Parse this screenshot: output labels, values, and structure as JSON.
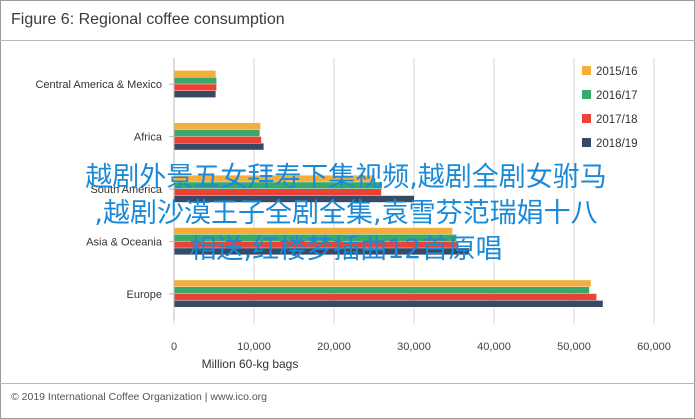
{
  "header": {
    "title": "Figure 6: Regional coffee consumption"
  },
  "footer": {
    "text": "© 2019 International Coffee Organization",
    "link": "www.ico.org"
  },
  "overlay_text": [
    "越剧外景五女拜寿下集视频,越剧全剧女驸马",
    ",越剧沙漠王子全剧全集,袁雪芬范瑞娟十八",
    "相送,红楼梦插曲12首原唱"
  ],
  "chart_data": {
    "type": "bar",
    "orientation": "horizontal",
    "title": "Figure 6: Regional coffee consumption",
    "xlabel": "Million 60-kg bags",
    "ylabel": "",
    "xlim": [
      0,
      60000
    ],
    "xticks": [
      0,
      10000,
      20000,
      30000,
      40000,
      50000,
      60000
    ],
    "xtick_labels": [
      "0",
      "10,000",
      "20,000",
      "30,000",
      "40,000",
      "50,000",
      "60,000"
    ],
    "grid": true,
    "legend_position": "top-right",
    "categories": [
      "Central America & Mexico",
      "Africa",
      "South America",
      "Asia & Oceania",
      "Europe"
    ],
    "series": [
      {
        "name": "2015/16",
        "color": "#f5ad3c",
        "values": [
          5200,
          10800,
          25100,
          34800,
          52100
        ]
      },
      {
        "name": "2016/17",
        "color": "#38a86b",
        "values": [
          5300,
          10700,
          26000,
          35300,
          51900
        ]
      },
      {
        "name": "2017/18",
        "color": "#ea4335",
        "values": [
          5300,
          10900,
          25900,
          35400,
          52800
        ]
      },
      {
        "name": "2018/19",
        "color": "#364a66",
        "values": [
          5200,
          11200,
          30000,
          36900,
          53600
        ]
      }
    ]
  }
}
